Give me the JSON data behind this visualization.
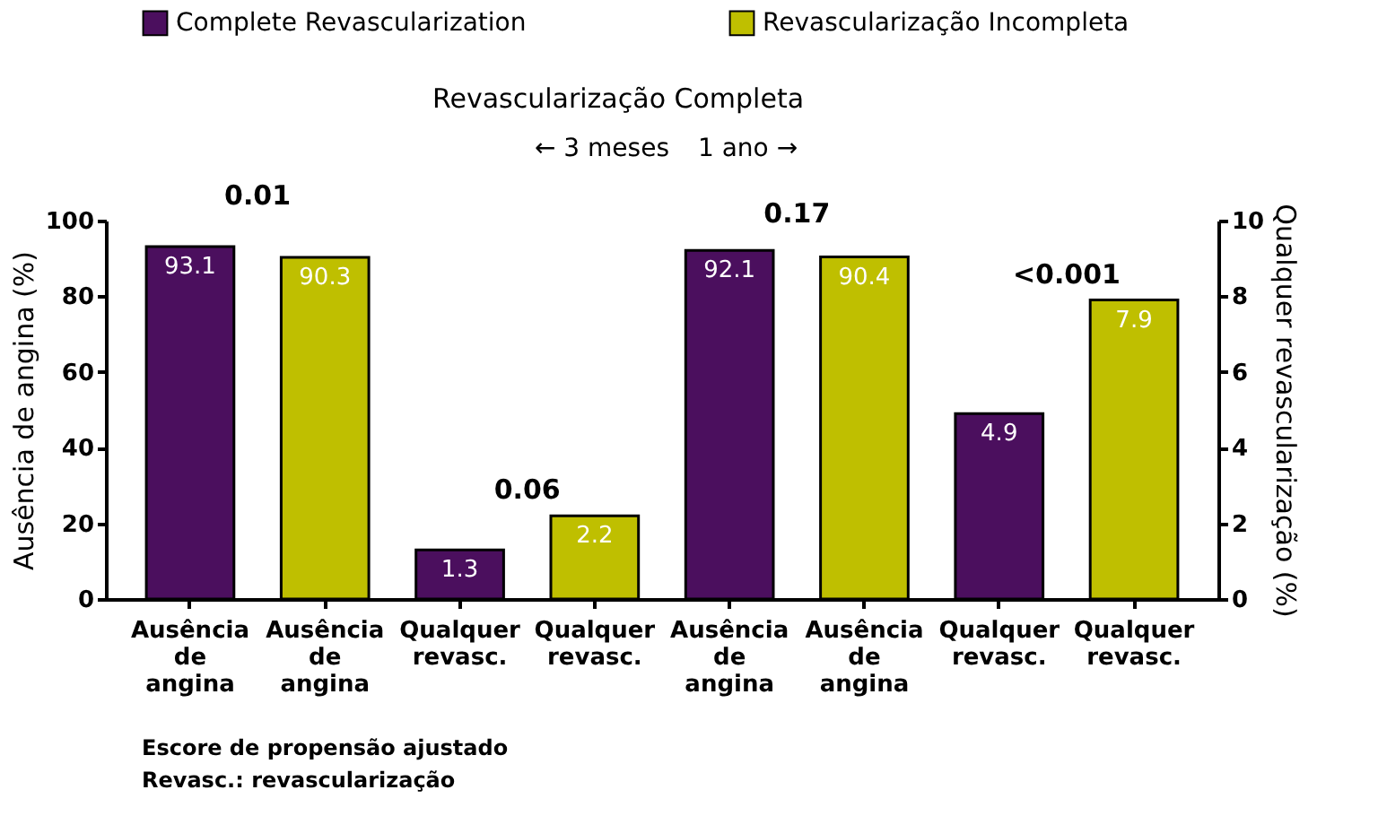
{
  "chart_data": {
    "type": "bar",
    "categories": [
      "Ausência de angina",
      "Ausência de angina",
      "Qualquer revasc.",
      "Qualquer revasc.",
      "Ausência de angina",
      "Ausência de angina",
      "Qualquer revasc.",
      "Qualquer revasc."
    ],
    "series": [
      {
        "name": "Complete Revascularization",
        "color": "#4b0f5e",
        "values": [
          93.1,
          null,
          null,
          null,
          92.1,
          null,
          null,
          null
        ]
      },
      {
        "name": "Revascularização Incompleta",
        "color": "#bfbf00",
        "values": [
          null,
          90.3,
          null,
          null,
          null,
          90.4,
          null,
          null
        ]
      },
      {
        "color": "#4b0f5e",
        "axis": "y2",
        "values": [
          null,
          null,
          1.3,
          null,
          null,
          null,
          4.9,
          null
        ]
      },
      {
        "color": "#bfbf00",
        "axis": "y2",
        "values": [
          null,
          null,
          null,
          2.2,
          null,
          null,
          null,
          7.9
        ]
      }
    ],
    "ylabel": "Ausência de angina (%)",
    "y2label": "Qualquer revascularização (%)",
    "ylim": [
      0,
      100
    ],
    "yticks": [
      0,
      20,
      40,
      60,
      80,
      100
    ],
    "y2lim": [
      0,
      10
    ],
    "y2ticks": [
      0,
      2,
      4,
      6,
      8,
      10
    ],
    "data_labels": true,
    "legend": "top",
    "annotations": [
      "Revascularização Completa",
      "← 3 meses",
      "1 ano →",
      "0.01",
      "0.06",
      "0.17",
      "<0.001",
      "Escore de propensão ajustado",
      "Revasc.: revascularização"
    ]
  }
}
